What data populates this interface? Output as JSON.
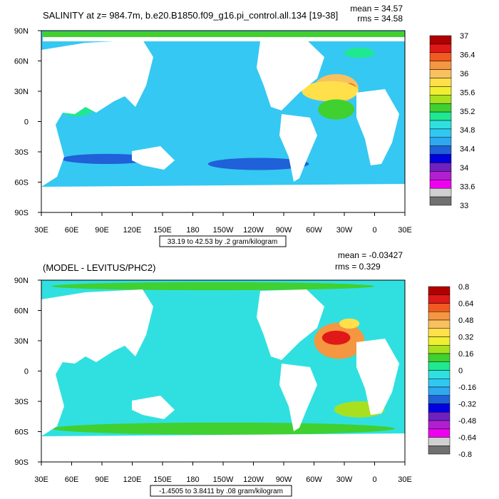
{
  "chart_data": [
    {
      "type": "heatmap",
      "title": "SALINITY at z= 984.7m, b.e20.B1850.f09_g16.pi_control.all.134 [19-38]",
      "stats": {
        "mean": "mean = 34.57",
        "rms": "rms = 34.58"
      },
      "x_ticks": [
        "30E",
        "60E",
        "90E",
        "120E",
        "150E",
        "180",
        "150W",
        "120W",
        "90W",
        "60W",
        "30W",
        "0",
        "30E"
      ],
      "y_ticks": [
        "90N",
        "60N",
        "30N",
        "0",
        "30S",
        "60S",
        "90S"
      ],
      "xlim": [
        30,
        390
      ],
      "ylim": [
        -90,
        90
      ],
      "caption": "33.19 to 42.53 by .2 gram/kilogram",
      "colorbar": {
        "labels": [
          "37",
          "36.4",
          "36",
          "35.6",
          "35.2",
          "34.8",
          "34.4",
          "34",
          "33.6",
          "33"
        ],
        "colors": [
          "#b00000",
          "#e01818",
          "#f05a20",
          "#f59640",
          "#f9c060",
          "#ffe04a",
          "#f0ee30",
          "#a8e020",
          "#40d030",
          "#20e890",
          "#30e0e0",
          "#30c8f0",
          "#30a8f0",
          "#2060d8",
          "#0000e0",
          "#7020c0",
          "#b020d0",
          "#f000f0",
          "#d0d0d0",
          "#707070"
        ]
      },
      "field": {
        "base": "#35c8f2",
        "features": [
          {
            "name": "north-atlantic-high",
            "color": "#f9c060",
            "lon": 322,
            "lat": 33,
            "rx": 22,
            "ry": 14
          },
          {
            "name": "atlantic-core",
            "color": "#f05a20",
            "lon": 335,
            "lat": 32,
            "rx": 7,
            "ry": 6
          },
          {
            "name": "atlantic-band",
            "color": "#ffe04a",
            "lon": 316,
            "lat": 30,
            "rx": 28,
            "ry": 10
          },
          {
            "name": "equatorial-atlantic",
            "color": "#40d030",
            "lon": 322,
            "lat": 12,
            "rx": 18,
            "ry": 10
          },
          {
            "name": "nordic-seas",
            "color": "#20e890",
            "lon": 345,
            "lat": 68,
            "rx": 15,
            "ry": 5
          },
          {
            "name": "south-pacific-low",
            "color": "#2060d8",
            "lon": 245,
            "lat": -42,
            "rx": 50,
            "ry": 6
          },
          {
            "name": "south-indian-low",
            "color": "#2060d8",
            "lon": 95,
            "lat": -37,
            "rx": 45,
            "ry": 5
          },
          {
            "name": "north-indian",
            "color": "#20e890",
            "lon": 65,
            "lat": 15,
            "rx": 18,
            "ry": 10
          }
        ]
      }
    },
    {
      "type": "heatmap",
      "title": "(MODEL - LEVITUS/PHC2)",
      "stats": {
        "mean": "mean = -0.03427",
        "rms": "rms = 0.329"
      },
      "x_ticks": [
        "30E",
        "60E",
        "90E",
        "120E",
        "150E",
        "180",
        "150W",
        "120W",
        "90W",
        "60W",
        "30W",
        "0",
        "30E"
      ],
      "y_ticks": [
        "90N",
        "60N",
        "30N",
        "0",
        "30S",
        "60S",
        "90S"
      ],
      "xlim": [
        30,
        390
      ],
      "ylim": [
        -90,
        90
      ],
      "caption": "-1.4505 to 3.8411 by .08 gram/kilogram",
      "colorbar": {
        "labels": [
          "0.8",
          "0.64",
          "0.48",
          "0.32",
          "0.16",
          "0",
          "-0.16",
          "-0.32",
          "-0.48",
          "-0.64",
          "-0.8"
        ],
        "colors": [
          "#b00000",
          "#e01818",
          "#f05a20",
          "#f59640",
          "#f9c060",
          "#ffe04a",
          "#f0ee30",
          "#a8e020",
          "#40d030",
          "#20e890",
          "#30e0e0",
          "#30c8f0",
          "#30a8f0",
          "#2060d8",
          "#0000e0",
          "#7020c0",
          "#b020d0",
          "#f000f0",
          "#d0d0d0",
          "#707070"
        ]
      },
      "field": {
        "base": "#30e0e0",
        "features": [
          {
            "name": "north-atlantic-pos",
            "color": "#f59640",
            "lon": 325,
            "lat": 30,
            "rx": 25,
            "ry": 18
          },
          {
            "name": "north-atlantic-core",
            "color": "#e01818",
            "lon": 322,
            "lat": 33,
            "rx": 14,
            "ry": 7
          },
          {
            "name": "mediterranean",
            "color": "#ffe04a",
            "lon": 335,
            "lat": 47,
            "rx": 10,
            "ry": 5
          },
          {
            "name": "south-ocean-band",
            "color": "#40d030",
            "lon": 210,
            "lat": -57,
            "rx": 170,
            "ry": 6
          },
          {
            "name": "arctic",
            "color": "#40d030",
            "lon": 200,
            "lat": 84,
            "rx": 160,
            "ry": 4
          },
          {
            "name": "red-sea",
            "color": "#7020c0",
            "lon": 68,
            "lat": 22,
            "rx": 4,
            "ry": 5
          },
          {
            "name": "south-atlantic-green",
            "color": "#a8e020",
            "lon": 345,
            "lat": -38,
            "rx": 25,
            "ry": 8
          }
        ]
      }
    }
  ]
}
